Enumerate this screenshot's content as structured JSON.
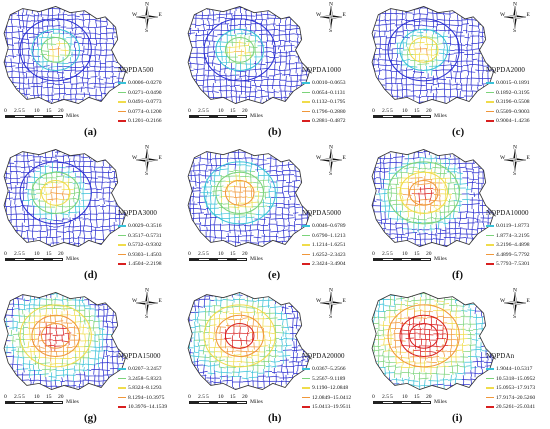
{
  "scale_labels": [
    "0",
    "2.5",
    "5",
    "10",
    "15",
    "20"
  ],
  "scale_unit": "Miles",
  "compass": {
    "n": "N",
    "s": "S",
    "e": "E",
    "w": "W"
  },
  "colors": {
    "road_low": "#2b2fd0",
    "c1": "#38c1d8",
    "c2": "#7bd37a",
    "c3": "#f0dc4b",
    "c4": "#f0973a",
    "c5": "#d81f1f"
  },
  "panels": [
    {
      "id": "a",
      "label": "(a)",
      "title": "NQPDA500",
      "classes": [
        "0.0006–0.0270",
        "0.0271–0.0490",
        "0.0491–0.0773",
        "0.0774–0.1200",
        "0.1201–0.2166"
      ],
      "intensity": 0.15
    },
    {
      "id": "b",
      "label": "(b)",
      "title": "NQPDA1000",
      "classes": [
        "0.0010–0.0653",
        "0.0654–0.1131",
        "0.1132–0.1795",
        "0.1796–0.2880",
        "0.2881–0.4872"
      ],
      "intensity": 0.2
    },
    {
      "id": "c",
      "label": "(c)",
      "title": "NQPDA2000",
      "classes": [
        "0.0015–0.1891",
        "0.1892–0.3195",
        "0.3196–0.5508",
        "0.5509–0.9003",
        "0.9004–1.4236"
      ],
      "intensity": 0.25
    },
    {
      "id": "d",
      "label": "(d)",
      "title": "NQPDA3000",
      "classes": [
        "0.0029–0.3516",
        "0.3517–0.5731",
        "0.5732–0.9302",
        "0.9303–1.4503",
        "1.4504–2.2198"
      ],
      "intensity": 0.35
    },
    {
      "id": "e",
      "label": "(e)",
      "title": "NQPDA5000",
      "classes": [
        "0.0046–0.6789",
        "0.6790–1.1213",
        "1.1214–1.6251",
        "1.6252–2.3423",
        "2.3424–3.4904"
      ],
      "intensity": 0.45
    },
    {
      "id": "f",
      "label": "(f)",
      "title": "NQPDA10000",
      "classes": [
        "0.0119–1.8773",
        "1.8774–3.2195",
        "3.2196–4.4898",
        "4.4899–5.7792",
        "5.7793–7.5301"
      ],
      "intensity": 0.6
    },
    {
      "id": "g",
      "label": "(g)",
      "title": "NQPDA15000",
      "classes": [
        "0.0207–3.2457",
        "3.2458–5.8323",
        "5.8324–8.1293",
        "8.1294–10.3975",
        "10.3976–14.1539"
      ],
      "intensity": 0.75
    },
    {
      "id": "h",
      "label": "(h)",
      "title": "NQPDA20000",
      "classes": [
        "0.0367–5.2566",
        "5.2567–9.1189",
        "9.1190–12.0848",
        "12.0849–15.0412",
        "15.0413–19.9511"
      ],
      "intensity": 0.75
    },
    {
      "id": "i",
      "label": "(i)",
      "title": "NQPDAn",
      "classes": [
        "1.9044–10.5317",
        "10.5318–15.0952",
        "15.0953–17.9173",
        "17.9174–20.5260",
        "20.5261–25.0341"
      ],
      "intensity": 0.95
    }
  ]
}
